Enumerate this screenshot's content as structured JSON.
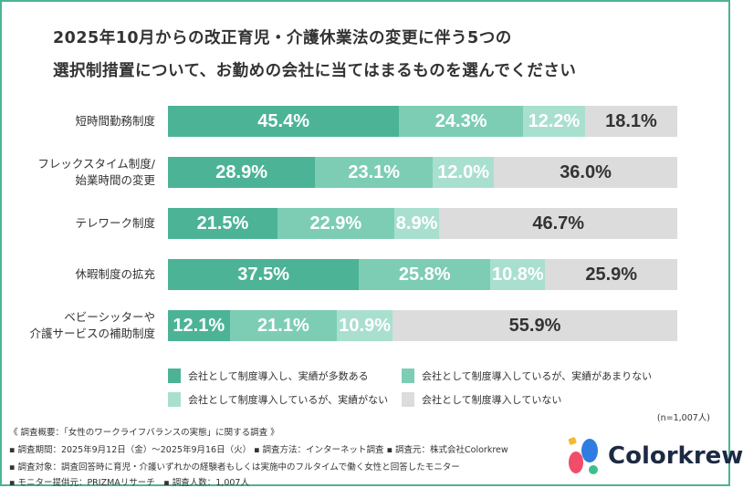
{
  "chart_data": {
    "type": "bar",
    "orientation": "horizontal-stacked-100",
    "title": [
      "2025年10月からの改正育児・介護休業法の変更に伴う5つの",
      "選択制措置について、お勤めの会社に当てはまるものを選んでください"
    ],
    "categories": [
      [
        "短時間勤務制度"
      ],
      [
        "フレックスタイム制度/",
        "始業時間の変更"
      ],
      [
        "テレワーク制度"
      ],
      [
        "休暇制度の拡充"
      ],
      [
        "ベビーシッターや",
        "介護サービスの補助制度"
      ]
    ],
    "series": [
      {
        "name": "会社として制度導入し、実績が多数ある",
        "color": "#4cb396",
        "values": [
          45.4,
          28.9,
          21.5,
          37.5,
          12.1
        ]
      },
      {
        "name": "会社として制度導入しているが、実績があまりない",
        "color": "#7dcdb4",
        "values": [
          24.3,
          23.1,
          22.9,
          25.8,
          21.1
        ]
      },
      {
        "name": "会社として制度導入しているが、実績がない",
        "color": "#a9dfcf",
        "values": [
          12.2,
          12.0,
          8.9,
          10.8,
          10.9
        ]
      },
      {
        "name": "会社として制度導入していない",
        "color": "#dcdcdc",
        "values": [
          18.1,
          36.0,
          46.7,
          25.9,
          55.9
        ]
      }
    ],
    "value_suffix": "%",
    "legend_placement": "bottom",
    "n_label": "(n=1,007人)"
  },
  "footer": {
    "lines": [
      "《 調査概要：「女性のワークライフバランスの実態」に関する調査 》",
      "▪ 調査期間：2025年9月12日（金）〜2025年9月16日（火） ▪ 調査方法：インターネット調査 ▪ 調査元：株式会社Colorkrew",
      "▪ 調査対象：調査回答時に育児・介護いずれかの経験者もしくは実施中のフルタイムで働く女性と回答したモニター",
      "▪ モニター提供元：PRIZMAリサーチ　▪ 調査人数：1,007人"
    ],
    "logo_text": "Colorkrew"
  }
}
